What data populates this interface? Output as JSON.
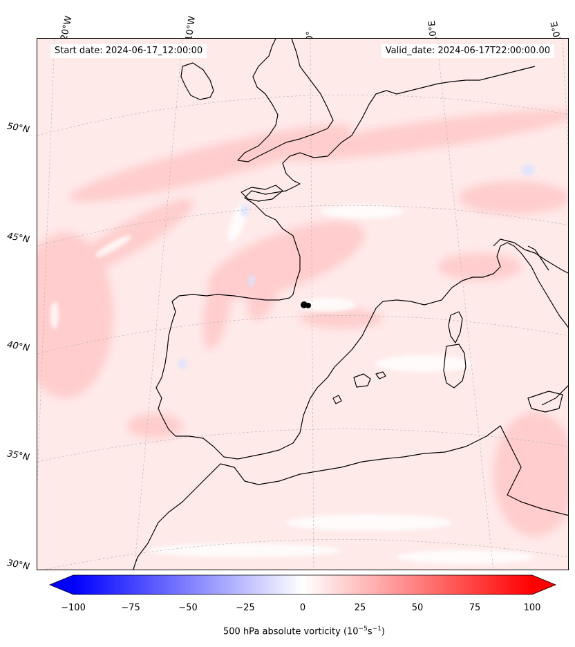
{
  "header": {
    "start_label": "Start date: 2024-06-17_12:00:00",
    "valid_label": "Valid_date: 2024-06-17T22:00:00.00"
  },
  "graticule": {
    "longitude_labels": [
      "20°W",
      "10°W",
      "0°",
      "10°E",
      "20°E"
    ],
    "latitude_labels": [
      "50°N",
      "45°N",
      "40°N",
      "35°N",
      "30°N"
    ]
  },
  "colorbar": {
    "ticks": [
      "−100",
      "−75",
      "−50",
      "−25",
      "0",
      "25",
      "50",
      "75",
      "100"
    ],
    "range": [
      -100,
      100
    ],
    "colormap": "bwr",
    "low_color": "#0000ff",
    "mid_color": "#ffffff",
    "high_color": "#ff0000",
    "label_prefix": "500 hPa absolute vorticity (10",
    "label_exp1": "−5",
    "label_mid": "s",
    "label_exp2": "−1",
    "label_suffix": ")"
  },
  "field": {
    "background_color": "#ffeaea",
    "marker_color": "#000000"
  }
}
